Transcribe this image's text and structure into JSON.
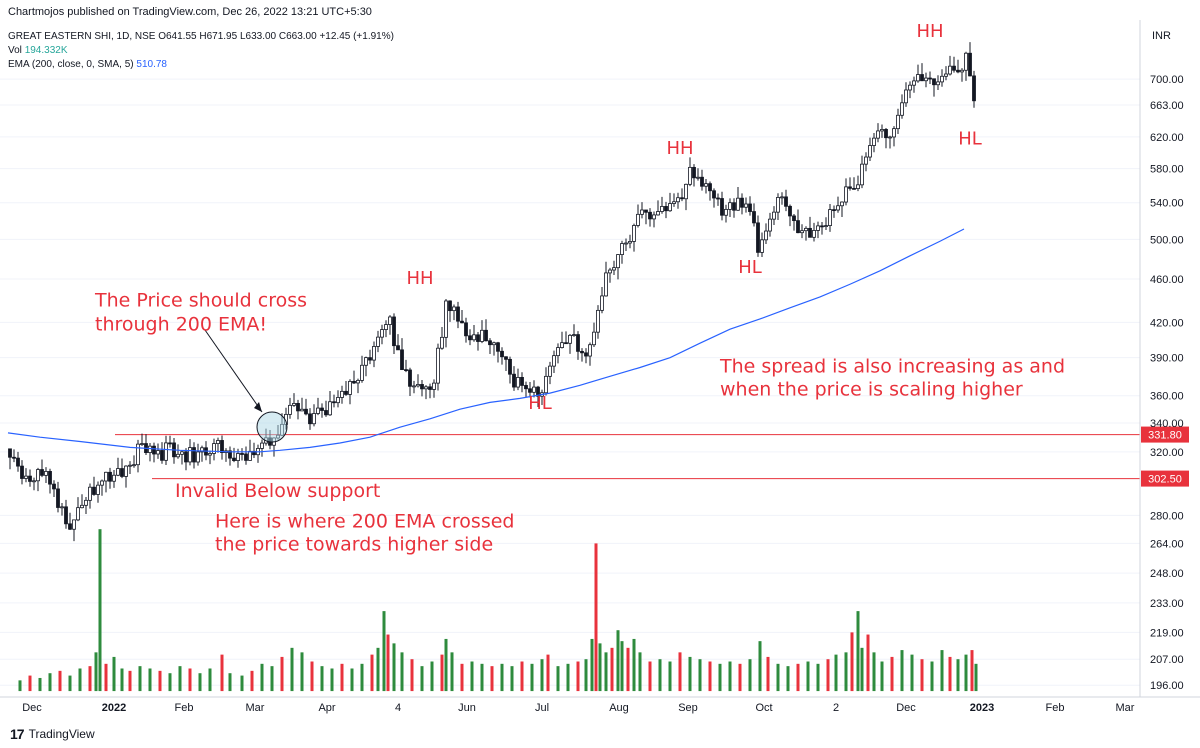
{
  "header": {
    "publisher": "Chartmojos published on TradingView.com, Dec 26, 2022 13:21 UTC+5:30",
    "symbol_line": "GREAT EASTERN SHI, 1D, NSE  O641.55  H671.95  L633.00  C663.00  +12.45 (+1.91%)",
    "vol_label": "Vol",
    "vol_value": "194.332K",
    "ema_label": "EMA (200, close, 0, SMA, 5)",
    "ema_value": "510.78",
    "currency": "INR"
  },
  "footer": {
    "brand": "TradingView"
  },
  "colors": {
    "up": "#26a69a",
    "down": "#ef5350",
    "ema": "#2962ff",
    "level": "#e8323c",
    "annotation": "#e8323c",
    "vol_up": "#2e8b3d",
    "vol_down": "#e8323c"
  },
  "chart_data": {
    "type": "candlestick",
    "y_scale": "log",
    "ylim": [
      190,
      760
    ],
    "y_ticks": [
      "700.00",
      "663.00",
      "620.00",
      "580.00",
      "540.00",
      "500.00",
      "460.00",
      "420.00",
      "390.00",
      "360.00",
      "340.00",
      "320.00",
      "280.00",
      "264.00",
      "248.00",
      "233.00",
      "219.00",
      "207.00",
      "196.00"
    ],
    "x_ticks": [
      "Dec",
      "2022",
      "Feb",
      "Mar",
      "Apr",
      "4",
      "Jun",
      "Jul",
      "Aug",
      "Sep",
      "Oct",
      "2",
      "Dec",
      "2023",
      "Feb",
      "Mar"
    ],
    "price_path": [
      [
        0,
        322
      ],
      [
        10,
        310
      ],
      [
        15,
        300
      ],
      [
        20,
        298
      ],
      [
        28,
        312
      ],
      [
        35,
        303
      ],
      [
        40,
        298
      ],
      [
        45,
        293
      ],
      [
        52,
        282
      ],
      [
        58,
        272
      ],
      [
        65,
        283
      ],
      [
        75,
        292
      ],
      [
        90,
        300
      ],
      [
        105,
        305
      ],
      [
        118,
        312
      ],
      [
        130,
        322
      ],
      [
        142,
        325
      ],
      [
        150,
        318
      ],
      [
        158,
        322
      ],
      [
        165,
        320
      ],
      [
        172,
        316
      ],
      [
        182,
        318
      ],
      [
        192,
        322
      ],
      [
        200,
        318
      ],
      [
        207,
        324
      ],
      [
        212,
        316
      ],
      [
        222,
        314
      ],
      [
        232,
        316
      ],
      [
        245,
        320
      ],
      [
        255,
        326
      ],
      [
        262,
        322
      ],
      [
        268,
        330
      ],
      [
        275,
        345
      ],
      [
        282,
        358
      ],
      [
        288,
        352
      ],
      [
        295,
        340
      ],
      [
        302,
        345
      ],
      [
        312,
        350
      ],
      [
        322,
        352
      ],
      [
        332,
        360
      ],
      [
        342,
        368
      ],
      [
        352,
        380
      ],
      [
        362,
        392
      ],
      [
        372,
        408
      ],
      [
        378,
        425
      ],
      [
        385,
        402
      ],
      [
        392,
        384
      ],
      [
        400,
        372
      ],
      [
        410,
        362
      ],
      [
        418,
        362
      ],
      [
        425,
        378
      ],
      [
        430,
        400
      ],
      [
        436,
        438
      ],
      [
        443,
        432
      ],
      [
        450,
        418
      ],
      [
        458,
        410
      ],
      [
        465,
        402
      ],
      [
        472,
        408
      ],
      [
        480,
        398
      ],
      [
        490,
        395
      ],
      [
        498,
        378
      ],
      [
        505,
        368
      ],
      [
        512,
        368
      ],
      [
        522,
        362
      ],
      [
        532,
        368
      ],
      [
        540,
        385
      ],
      [
        548,
        394
      ],
      [
        556,
        400
      ],
      [
        564,
        404
      ],
      [
        570,
        398
      ],
      [
        576,
        392
      ],
      [
        582,
        408
      ],
      [
        588,
        428
      ],
      [
        594,
        458
      ],
      [
        600,
        466
      ],
      [
        606,
        478
      ],
      [
        612,
        490
      ],
      [
        618,
        500
      ],
      [
        624,
        518
      ],
      [
        630,
        522
      ],
      [
        638,
        525
      ],
      [
        648,
        530
      ],
      [
        658,
        532
      ],
      [
        666,
        540
      ],
      [
        672,
        552
      ],
      [
        678,
        570
      ],
      [
        686,
        578
      ],
      [
        692,
        562
      ],
      [
        698,
        548
      ],
      [
        704,
        542
      ],
      [
        712,
        530
      ],
      [
        720,
        534
      ],
      [
        728,
        540
      ],
      [
        735,
        532
      ],
      [
        742,
        522
      ],
      [
        748,
        490
      ],
      [
        754,
        508
      ],
      [
        760,
        528
      ],
      [
        766,
        542
      ],
      [
        772,
        548
      ],
      [
        778,
        538
      ],
      [
        784,
        522
      ],
      [
        790,
        512
      ],
      [
        796,
        508
      ],
      [
        802,
        512
      ],
      [
        810,
        515
      ],
      [
        818,
        520
      ],
      [
        826,
        535
      ],
      [
        834,
        550
      ],
      [
        842,
        555
      ],
      [
        848,
        562
      ],
      [
        854,
        588
      ],
      [
        860,
        610
      ],
      [
        866,
        628
      ],
      [
        872,
        625
      ],
      [
        878,
        618
      ],
      [
        884,
        640
      ],
      [
        890,
        660
      ],
      [
        896,
        690
      ],
      [
        902,
        700
      ],
      [
        908,
        695
      ],
      [
        914,
        688
      ],
      [
        920,
        698
      ],
      [
        926,
        692
      ],
      [
        932,
        702
      ],
      [
        938,
        722
      ],
      [
        944,
        708
      ],
      [
        950,
        700
      ],
      [
        956,
        728
      ],
      [
        960,
        700
      ],
      [
        964,
        660
      ],
      [
        966,
        642
      ]
    ],
    "ema_path": [
      [
        8,
        333
      ],
      [
        40,
        330
      ],
      [
        80,
        327
      ],
      [
        130,
        323
      ],
      [
        180,
        321
      ],
      [
        230,
        320
      ],
      [
        260,
        320
      ],
      [
        280,
        321
      ],
      [
        310,
        323
      ],
      [
        340,
        326
      ],
      [
        370,
        330
      ],
      [
        400,
        337
      ],
      [
        430,
        343
      ],
      [
        460,
        350
      ],
      [
        490,
        355
      ],
      [
        520,
        358
      ],
      [
        550,
        362
      ],
      [
        580,
        368
      ],
      [
        610,
        375
      ],
      [
        640,
        382
      ],
      [
        670,
        390
      ],
      [
        700,
        402
      ],
      [
        730,
        414
      ],
      [
        760,
        423
      ],
      [
        790,
        433
      ],
      [
        820,
        443
      ],
      [
        850,
        455
      ],
      [
        880,
        468
      ],
      [
        910,
        483
      ],
      [
        940,
        498
      ],
      [
        964,
        511
      ]
    ],
    "volume": [
      [
        10,
        198
      ],
      [
        20,
        200
      ],
      [
        30,
        199
      ],
      [
        40,
        201
      ],
      [
        50,
        202
      ],
      [
        60,
        200
      ],
      [
        70,
        203
      ],
      [
        80,
        204
      ],
      [
        86,
        210
      ],
      [
        90,
        272
      ],
      [
        96,
        205
      ],
      [
        104,
        208
      ],
      [
        112,
        203
      ],
      [
        120,
        202
      ],
      [
        130,
        204
      ],
      [
        140,
        203
      ],
      [
        150,
        202
      ],
      [
        160,
        201
      ],
      [
        170,
        204
      ],
      [
        180,
        203
      ],
      [
        190,
        201
      ],
      [
        200,
        203
      ],
      [
        212,
        209
      ],
      [
        220,
        201
      ],
      [
        232,
        200
      ],
      [
        242,
        202
      ],
      [
        252,
        205
      ],
      [
        262,
        204
      ],
      [
        272,
        208
      ],
      [
        282,
        212
      ],
      [
        292,
        210
      ],
      [
        302,
        206
      ],
      [
        312,
        204
      ],
      [
        322,
        203
      ],
      [
        332,
        205
      ],
      [
        342,
        203
      ],
      [
        352,
        205
      ],
      [
        362,
        209
      ],
      [
        368,
        212
      ],
      [
        374,
        229
      ],
      [
        378,
        218
      ],
      [
        384,
        214
      ],
      [
        392,
        210
      ],
      [
        402,
        207
      ],
      [
        412,
        204
      ],
      [
        422,
        206
      ],
      [
        432,
        209
      ],
      [
        436,
        216
      ],
      [
        442,
        210
      ],
      [
        452,
        205
      ],
      [
        462,
        206
      ],
      [
        472,
        205
      ],
      [
        482,
        204
      ],
      [
        492,
        205
      ],
      [
        502,
        204
      ],
      [
        512,
        206
      ],
      [
        522,
        205
      ],
      [
        532,
        207
      ],
      [
        538,
        209
      ],
      [
        548,
        204
      ],
      [
        558,
        205
      ],
      [
        568,
        206
      ],
      [
        576,
        207
      ],
      [
        582,
        216
      ],
      [
        586,
        264
      ],
      [
        590,
        214
      ],
      [
        596,
        210
      ],
      [
        602,
        212
      ],
      [
        608,
        220
      ],
      [
        612,
        215
      ],
      [
        618,
        212
      ],
      [
        624,
        216
      ],
      [
        630,
        210
      ],
      [
        640,
        206
      ],
      [
        650,
        207
      ],
      [
        660,
        206
      ],
      [
        670,
        210
      ],
      [
        680,
        208
      ],
      [
        690,
        207
      ],
      [
        700,
        206
      ],
      [
        710,
        205
      ],
      [
        720,
        206
      ],
      [
        730,
        205
      ],
      [
        740,
        207
      ],
      [
        750,
        215
      ],
      [
        758,
        208
      ],
      [
        768,
        205
      ],
      [
        778,
        204
      ],
      [
        788,
        205
      ],
      [
        798,
        206
      ],
      [
        808,
        205
      ],
      [
        818,
        207
      ],
      [
        826,
        209
      ],
      [
        836,
        210
      ],
      [
        842,
        219
      ],
      [
        848,
        229
      ],
      [
        852,
        212
      ],
      [
        858,
        218
      ],
      [
        864,
        210
      ],
      [
        872,
        206
      ],
      [
        882,
        208
      ],
      [
        892,
        211
      ],
      [
        902,
        209
      ],
      [
        912,
        207
      ],
      [
        922,
        206
      ],
      [
        932,
        211
      ],
      [
        940,
        208
      ],
      [
        948,
        207
      ],
      [
        956,
        209
      ],
      [
        962,
        211
      ],
      [
        966,
        205
      ]
    ],
    "levels": [
      {
        "label": "331.80",
        "value": 331.8
      },
      {
        "label": "302.50",
        "value": 302.5
      }
    ],
    "annotations": [
      {
        "text": "HH",
        "time": 420,
        "price": 455
      },
      {
        "text": "HH",
        "time": 680,
        "price": 598
      },
      {
        "text": "HH",
        "time": 930,
        "price": 765
      },
      {
        "text": "HL",
        "time": 540,
        "price": 350
      },
      {
        "text": "HL",
        "time": 750,
        "price": 466
      },
      {
        "text": "HL",
        "time": 970,
        "price": 610
      },
      {
        "text": "Invalid Below support",
        "time": 175,
        "price": 291
      },
      {
        "text": "The Price should cross",
        "time": 95,
        "price": 434
      },
      {
        "text": "through 200 EMA!",
        "time": 95,
        "price": 413
      },
      {
        "text": "The spread is also increasing as and",
        "time": 720,
        "price": 378
      },
      {
        "text": "when the price is scaling higher",
        "time": 720,
        "price": 360
      },
      {
        "text": "Here is where 200 EMA crossed",
        "time": 215,
        "price": 273
      },
      {
        "text": "the price towards higher side",
        "time": 215,
        "price": 260
      }
    ]
  }
}
